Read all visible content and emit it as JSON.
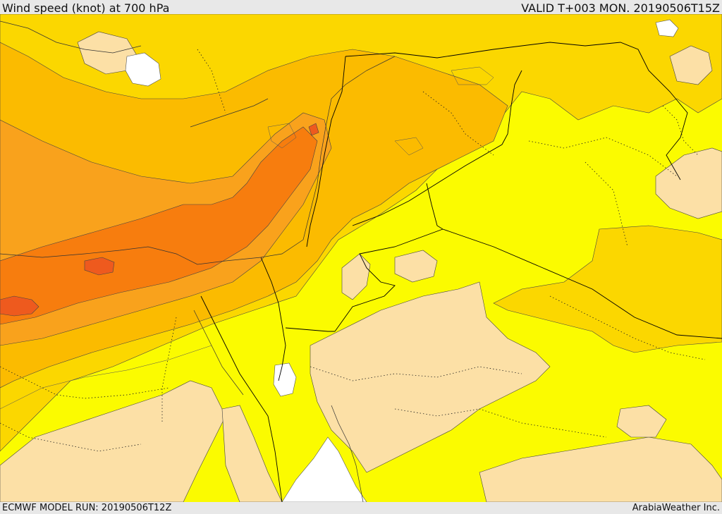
{
  "header": {
    "title": "Wind speed (knot) at 700 hPa",
    "valid": "VALID T+003 MON. 20190506T15Z"
  },
  "footer": {
    "model_run": "ECMWF MODEL RUN: 20190506T12Z",
    "credit": "ArabiaWeather Inc."
  },
  "colors": {
    "lightest_band": "#fce0a6",
    "yellow_band": "#fbfb00",
    "gold_band": "#fbd700",
    "amber_band": "#fbbb00",
    "orange_band": "#f9a21c",
    "dark_orange_band": "#f77d0e",
    "max_band": "#ee5a1e",
    "no_data": "#ffffff",
    "borders": "#000000"
  }
}
